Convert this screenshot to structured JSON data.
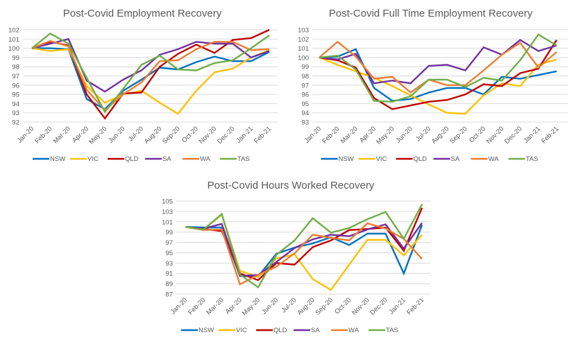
{
  "chart_data": [
    {
      "type": "line",
      "title": "Post-Covid Employment Recovery",
      "xlabel": "",
      "ylabel": "",
      "categories": [
        "Jan-20",
        "Feb-20",
        "Mar-20",
        "Apr-20",
        "May-20",
        "Jun-20",
        "Jul-20",
        "Aug-20",
        "Sep-20",
        "Oct-20",
        "Nov-20",
        "Dec-20",
        "Jan-21",
        "Feb-21"
      ],
      "ylim": [
        92,
        102
      ],
      "yticks": [
        "92",
        "93",
        "94",
        "95",
        "96",
        "97",
        "98",
        "99",
        "100",
        "101",
        "102"
      ],
      "grid": true,
      "legend": "bottom",
      "series": [
        {
          "name": "NSW",
          "color": "#0070C0",
          "values": [
            100,
            100.0,
            99.9,
            94.5,
            93.4,
            95.4,
            96.6,
            97.9,
            97.7,
            98.5,
            99.1,
            98.6,
            98.6,
            99.6
          ]
        },
        {
          "name": "VIC",
          "color": "#FFC000",
          "values": [
            100,
            99.7,
            99.9,
            95.9,
            94.1,
            95.0,
            95.4,
            94.1,
            92.9,
            95.4,
            97.4,
            97.8,
            99.0,
            99.8
          ]
        },
        {
          "name": "QLD",
          "color": "#C00000",
          "values": [
            100,
            100.7,
            100.3,
            95.0,
            92.4,
            95.1,
            95.2,
            98.0,
            99.4,
            100.4,
            99.5,
            100.9,
            101.1,
            102.0
          ]
        },
        {
          "name": "SA",
          "color": "#7030A0",
          "values": [
            100,
            100.5,
            101.0,
            96.5,
            95.3,
            96.6,
            97.6,
            99.3,
            99.9,
            100.7,
            100.5,
            100.5,
            99.0,
            99.7
          ]
        },
        {
          "name": "WA",
          "color": "#ED7D31",
          "values": [
            100,
            100.8,
            100.2,
            95.5,
            93.3,
            95.0,
            96.3,
            98.6,
            98.7,
            99.9,
            100.7,
            100.7,
            99.8,
            99.9
          ]
        },
        {
          "name": "TAS",
          "color": "#70AD47",
          "values": [
            100,
            101.6,
            100.5,
            96.8,
            93.1,
            95.6,
            98.2,
            99.2,
            97.7,
            97.6,
            98.4,
            98.7,
            100.0,
            101.4
          ]
        }
      ]
    },
    {
      "type": "line",
      "title": "Post-Covid Full Time Employment Recovery",
      "xlabel": "",
      "ylabel": "",
      "categories": [
        "Jan-20",
        "Feb-20",
        "Mar-20",
        "Apr-20",
        "May-20",
        "Jun-20",
        "Jul-20",
        "Aug-20",
        "Sep-20",
        "Oct-20",
        "Nov-20",
        "Dec-20",
        "Jan-21",
        "Feb-21"
      ],
      "ylim": [
        93,
        103
      ],
      "yticks": [
        "93",
        "94",
        "95",
        "96",
        "97",
        "98",
        "99",
        "100",
        "101",
        "102",
        "103"
      ],
      "grid": true,
      "legend": "bottom",
      "series": [
        {
          "name": "NSW",
          "color": "#0070C0",
          "values": [
            100,
            100.1,
            100.9,
            96.7,
            95.3,
            95.5,
            96.2,
            96.7,
            96.7,
            96.0,
            97.9,
            97.7,
            98.1,
            98.5
          ]
        },
        {
          "name": "VIC",
          "color": "#FFC000",
          "values": [
            100,
            99.2,
            98.5,
            97.8,
            96.9,
            95.9,
            94.9,
            94.0,
            93.9,
            95.9,
            97.2,
            96.9,
            99.2,
            99.8
          ]
        },
        {
          "name": "QLD",
          "color": "#C00000",
          "values": [
            100,
            99.7,
            98.9,
            95.6,
            94.4,
            94.8,
            95.2,
            95.4,
            96.0,
            97.1,
            96.9,
            98.3,
            98.8,
            101.9
          ]
        },
        {
          "name": "SA",
          "color": "#7030A0",
          "values": [
            100,
            99.8,
            100.4,
            97.2,
            97.5,
            97.2,
            99.1,
            99.2,
            98.6,
            101.1,
            100.3,
            101.9,
            100.7,
            101.3
          ]
        },
        {
          "name": "WA",
          "color": "#ED7D31",
          "values": [
            100,
            101.7,
            100.1,
            97.7,
            97.9,
            96.2,
            97.6,
            97.0,
            97.0,
            98.6,
            100.3,
            101.6,
            98.9,
            100.6
          ]
        },
        {
          "name": "TAS",
          "color": "#70AD47",
          "values": [
            100,
            100.2,
            98.7,
            95.3,
            95.2,
            95.8,
            97.6,
            97.6,
            96.8,
            97.8,
            97.5,
            99.7,
            102.5,
            101.3
          ]
        }
      ]
    },
    {
      "type": "line",
      "title": "Post-Covid Hours Worked Recovery",
      "xlabel": "",
      "ylabel": "",
      "categories": [
        "Jan-20",
        "Feb-20",
        "Mar-20",
        "Apr-20",
        "May-20",
        "Jun-20",
        "Jul-20",
        "Aug-20",
        "Sep-20",
        "Oct-20",
        "Nov-20",
        "Dec-20",
        "Jan-21",
        "Feb-21"
      ],
      "ylim": [
        87,
        105
      ],
      "yticks": [
        "87",
        "89",
        "91",
        "93",
        "95",
        "97",
        "99",
        "101",
        "103",
        "105"
      ],
      "grid": true,
      "legend": "bottom",
      "series": [
        {
          "name": "NSW",
          "color": "#0070C0",
          "values": [
            100,
            99.9,
            99.9,
            90.5,
            90.4,
            94.8,
            96.0,
            96.8,
            98.0,
            96.5,
            98.7,
            98.7,
            91.0,
            100.4
          ]
        },
        {
          "name": "VIC",
          "color": "#FFC000",
          "values": [
            100,
            99.5,
            102.4,
            91.5,
            90.3,
            93.9,
            94.7,
            89.9,
            87.8,
            92.7,
            97.5,
            97.5,
            94.5,
            98.5
          ]
        },
        {
          "name": "QLD",
          "color": "#C00000",
          "values": [
            100,
            99.6,
            99.2,
            91.0,
            89.7,
            93.0,
            92.7,
            96.1,
            97.4,
            99.4,
            99.6,
            99.9,
            95.4,
            103.7
          ]
        },
        {
          "name": "SA",
          "color": "#7030A0",
          "values": [
            100,
            99.7,
            100.6,
            90.5,
            90.7,
            93.2,
            95.9,
            97.6,
            98.5,
            98.2,
            99.5,
            100.5,
            95.8,
            100.8
          ]
        },
        {
          "name": "WA",
          "color": "#ED7D31",
          "values": [
            100,
            99.4,
            99.5,
            88.9,
            90.7,
            92.3,
            94.9,
            98.5,
            97.9,
            97.4,
            100.7,
            99.7,
            97.7,
            93.8
          ]
        },
        {
          "name": "TAS",
          "color": "#70AD47",
          "values": [
            100,
            99.5,
            102.5,
            90.8,
            88.3,
            94.6,
            97.4,
            101.7,
            98.9,
            99.8,
            101.5,
            102.9,
            97.7,
            104.4
          ]
        }
      ]
    }
  ]
}
